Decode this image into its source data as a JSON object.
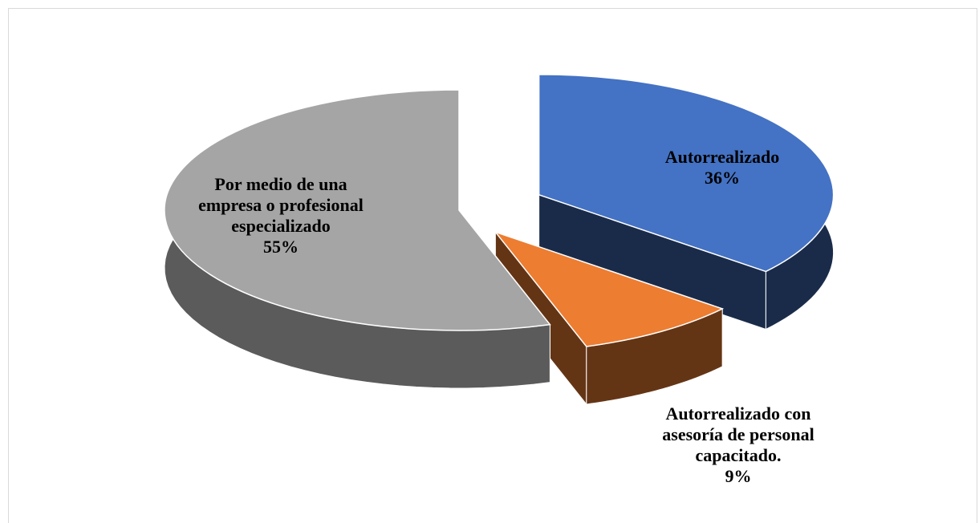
{
  "chart_data": {
    "type": "pie",
    "categories": [
      "Autorrealizado",
      "Autorrealizado con asesoría de personal capacitado.",
      "Por medio de una empresa o profesional especializado"
    ],
    "values": [
      36,
      9,
      55
    ],
    "value_labels": [
      "36%",
      "9%",
      "55%"
    ],
    "colors": [
      "#4472c4",
      "#ed7d31",
      "#a5a5a5"
    ]
  }
}
